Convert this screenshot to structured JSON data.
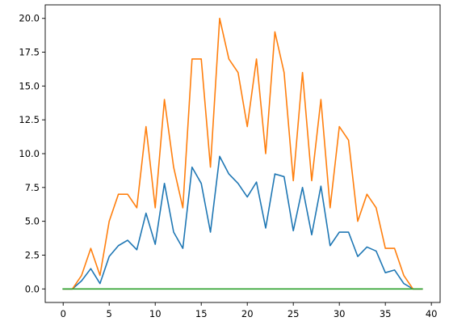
{
  "chart_data": {
    "type": "line",
    "title": "",
    "xlabel": "",
    "ylabel": "",
    "xlim": [
      -1.95,
      40.95
    ],
    "ylim": [
      -1.0,
      21.0
    ],
    "x_ticks": [
      0,
      5,
      10,
      15,
      20,
      25,
      30,
      35,
      40
    ],
    "y_ticks": [
      0.0,
      2.5,
      5.0,
      7.5,
      10.0,
      12.5,
      15.0,
      17.5,
      20.0
    ],
    "x_tick_labels": [
      "0",
      "5",
      "10",
      "15",
      "20",
      "25",
      "30",
      "35",
      "40"
    ],
    "y_tick_labels": [
      "0.0",
      "2.5",
      "5.0",
      "7.5",
      "10.0",
      "12.5",
      "15.0",
      "17.5",
      "20.0"
    ],
    "grid": false,
    "x": [
      0,
      1,
      2,
      3,
      4,
      5,
      6,
      7,
      8,
      9,
      10,
      11,
      12,
      13,
      14,
      15,
      16,
      17,
      18,
      19,
      20,
      21,
      22,
      23,
      24,
      25,
      26,
      27,
      28,
      29,
      30,
      31,
      32,
      33,
      34,
      35,
      36,
      37,
      38,
      39
    ],
    "series": [
      {
        "color": "#1f77b4",
        "values": [
          0,
          0,
          0.6,
          1.5,
          0.4,
          2.4,
          3.2,
          3.6,
          2.9,
          5.6,
          3.3,
          7.8,
          4.2,
          3.0,
          9.0,
          7.8,
          4.2,
          9.8,
          8.5,
          7.8,
          6.8,
          7.9,
          4.5,
          8.5,
          8.3,
          4.3,
          7.5,
          4.0,
          7.6,
          3.2,
          4.2,
          4.2,
          2.4,
          3.1,
          2.8,
          1.2,
          1.4,
          0.4,
          0,
          0
        ]
      },
      {
        "color": "#ff7f0e",
        "values": [
          0,
          0,
          1,
          3,
          1,
          5,
          7,
          7,
          6,
          12,
          6,
          14,
          9,
          6,
          17,
          17,
          9,
          20,
          17,
          16,
          12,
          17,
          10,
          19,
          16,
          8,
          16,
          8,
          14,
          6,
          12,
          11,
          5,
          7,
          6,
          3,
          3,
          1,
          0,
          0
        ]
      },
      {
        "color": "#2ca02c",
        "values": [
          0,
          0,
          0,
          0,
          0,
          0,
          0,
          0,
          0,
          0,
          0,
          0,
          0,
          0,
          0,
          0,
          0,
          0,
          0,
          0,
          0,
          0,
          0,
          0,
          0,
          0,
          0,
          0,
          0,
          0,
          0,
          0,
          0,
          0,
          0,
          0,
          0,
          0,
          0,
          0
        ]
      }
    ]
  }
}
